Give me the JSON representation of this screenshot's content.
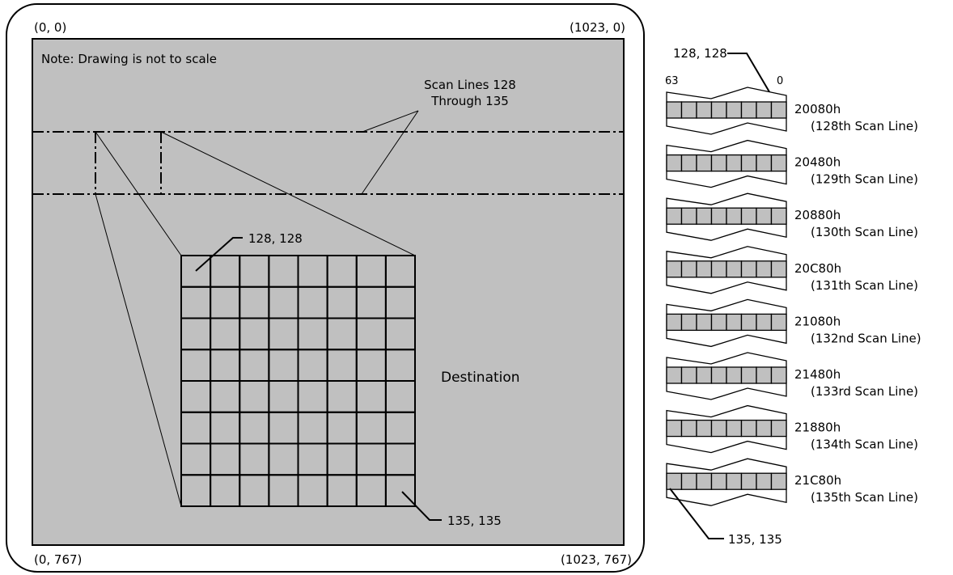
{
  "corners": {
    "top_left": "(0, 0)",
    "top_right": "(1023, 0)",
    "bottom_left": "(0, 767)",
    "bottom_right": "(1023, 767)"
  },
  "note": "Note: Drawing is not to scale",
  "scan_lines_label": [
    "Scan Lines 128",
    "Through 135"
  ],
  "destination_label": "Destination",
  "grid": {
    "rows": 8,
    "cols": 8,
    "top_left_label": "128, 128",
    "bottom_right_label": "135, 135"
  },
  "memory": {
    "top_label": "128, 128",
    "bit_high": "63",
    "bit_low": "0",
    "bottom_label": "135, 135",
    "cells_per_row": 8,
    "rows": [
      {
        "address": "20080h",
        "desc": "(128th Scan Line)"
      },
      {
        "address": "20480h",
        "desc": "(129th Scan Line)"
      },
      {
        "address": "20880h",
        "desc": "(130th Scan Line)"
      },
      {
        "address": "20C80h",
        "desc": "(131th Scan Line)"
      },
      {
        "address": "21080h",
        "desc": "(132nd Scan Line)"
      },
      {
        "address": "21480h",
        "desc": "(133rd Scan Line)"
      },
      {
        "address": "21880h",
        "desc": "(134th Scan Line)"
      },
      {
        "address": "21C80h",
        "desc": "(135th Scan Line)"
      }
    ]
  },
  "colors": {
    "screen_fill": "#c0c0c0",
    "cell_fill": "#c0c0c0",
    "line": "#000000"
  }
}
